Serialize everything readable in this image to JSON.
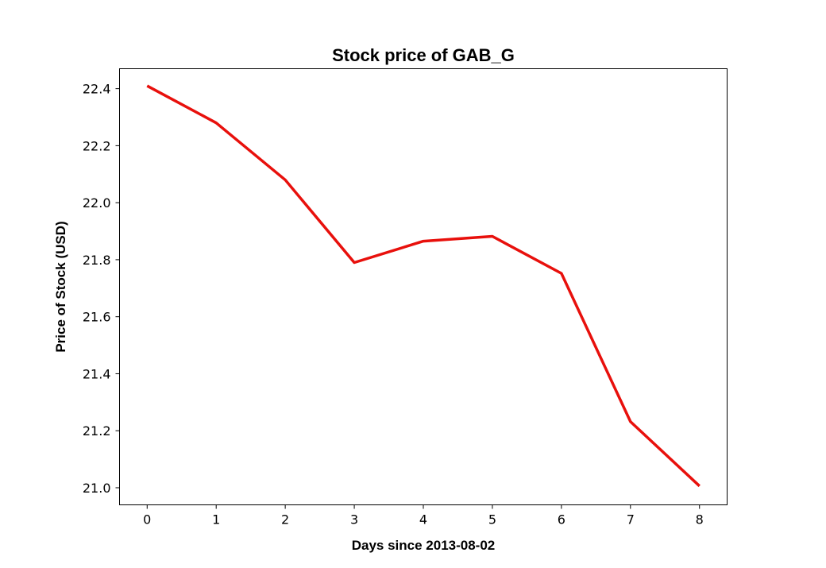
{
  "chart_data": {
    "type": "line",
    "title": "Stock price of GAB_G",
    "xlabel": "Days since 2013-08-02",
    "ylabel": "Price of Stock (USD)",
    "x": [
      0,
      1,
      2,
      3,
      4,
      5,
      6,
      7,
      8
    ],
    "xlim": [
      -0.4,
      8.4
    ],
    "ylim": [
      20.94,
      22.47
    ],
    "xticks": [
      0,
      1,
      2,
      3,
      4,
      5,
      6,
      7,
      8
    ],
    "xtick_labels": [
      "0",
      "1",
      "2",
      "3",
      "4",
      "5",
      "6",
      "7",
      "8"
    ],
    "yticks": [
      21.0,
      21.2,
      21.4,
      21.6,
      21.8,
      22.0,
      22.2,
      22.4
    ],
    "ytick_labels": [
      "21.0",
      "21.2",
      "21.4",
      "21.6",
      "21.8",
      "22.0",
      "22.2",
      "22.4"
    ],
    "grid": false,
    "legend": "none",
    "series": [
      {
        "color": "#e8100c",
        "values": [
          22.41,
          22.28,
          22.08,
          21.79,
          21.865,
          21.882,
          21.752,
          21.232,
          21.006
        ]
      }
    ]
  }
}
